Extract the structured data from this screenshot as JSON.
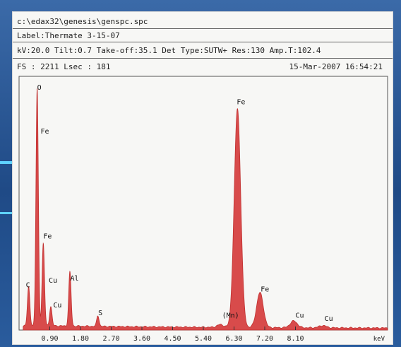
{
  "header": {
    "file_path": "c:\\edax32\\genesis\\genspc.spc",
    "label": "Label:Thermate 3-15-07",
    "params": "kV:20.0 Tilt:0.7 Take-off:35.1  Det Type:SUTW+ Res:130  Amp.T:102.4",
    "fs": "FS : 2211  Lsec : 181",
    "datetime": "15-Mar-2007 16:54:21"
  },
  "colors": {
    "spectrum_fill": "#d84b4b",
    "spectrum_edge": "#c0302f",
    "background": "#2a4f86"
  },
  "chart_data": {
    "type": "area",
    "x_unit": "keV",
    "xlim": [
      0,
      10.8
    ],
    "ylim": [
      0,
      2211
    ],
    "x_ticks": [
      0.9,
      1.8,
      2.7,
      3.6,
      4.5,
      5.4,
      6.3,
      7.2,
      8.1
    ],
    "x_tick_labels": [
      "0.90",
      "1.80",
      "2.70",
      "3.60",
      "4.50",
      "5.40",
      "6.30",
      "7.20",
      "8.10"
    ],
    "xlabel": "keV",
    "peaks": [
      {
        "label": "C",
        "x": 0.28,
        "y": 340
      },
      {
        "label": "O",
        "x": 0.53,
        "y": 2100
      },
      {
        "label": "Fe",
        "x": 0.71,
        "y": 730
      },
      {
        "label": "Cu",
        "x": 0.93,
        "y": 170
      },
      {
        "label": "Al",
        "x": 1.49,
        "y": 480
      },
      {
        "label": "S",
        "x": 2.31,
        "y": 95
      },
      {
        "label": "Fe",
        "x": 6.4,
        "y": 1940
      },
      {
        "label": "Fe",
        "x": 7.06,
        "y": 310
      },
      {
        "label": "Cu",
        "x": 8.05,
        "y": 60
      },
      {
        "label": "Cu",
        "x": 8.9,
        "y": 20
      },
      {
        "label": "Mn",
        "x": 5.9,
        "y": 25
      }
    ],
    "peak_labels": [
      {
        "text": "O",
        "x": 0.53,
        "y": 2130
      },
      {
        "text": "Fe",
        "x": 0.63,
        "y": 1740
      },
      {
        "text": "Fe",
        "x": 0.71,
        "y": 810
      },
      {
        "text": "C",
        "x": 0.2,
        "y": 380
      },
      {
        "text": "Cu",
        "x": 0.87,
        "y": 420
      },
      {
        "text": "Cu",
        "x": 1.0,
        "y": 200
      },
      {
        "text": "Al",
        "x": 1.5,
        "y": 440
      },
      {
        "text": "S",
        "x": 2.32,
        "y": 130
      },
      {
        "text": "Fe",
        "x": 6.38,
        "y": 2000
      },
      {
        "text": "(Mn)",
        "x": 5.95,
        "y": 110
      },
      {
        "text": "Fe",
        "x": 7.08,
        "y": 340
      },
      {
        "text": "Cu",
        "x": 8.1,
        "y": 110
      },
      {
        "text": "Cu",
        "x": 8.95,
        "y": 80
      }
    ]
  }
}
